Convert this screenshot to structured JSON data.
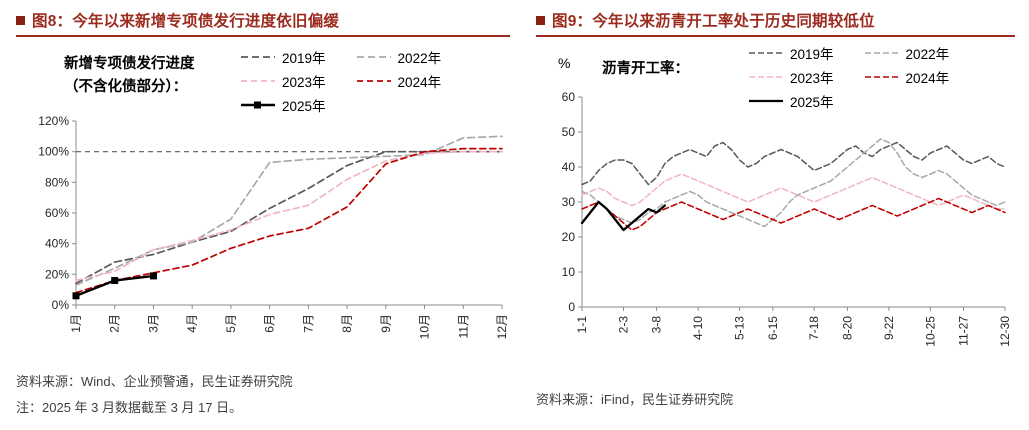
{
  "left_panel": {
    "title": "图8：今年以来新增专项债发行进度依旧偏缓",
    "caption_line1": "新增专项债发行进度",
    "caption_line2": "（不含化债部分）：",
    "source": "资料来源：Wind、企业预警通，民生证券研究院",
    "note": "注：2025 年 3 月数据截至 3 月 17 日。"
  },
  "right_panel": {
    "title": "图9：今年以来沥青开工率处于历史同期较低位",
    "unit_label": "%",
    "caption": "沥青开工率：",
    "source": "资料来源：iFind，民生证券研究院"
  },
  "colors": {
    "title": "#9C2B1F",
    "underline": "#9C2B1F",
    "bullet": "#8A1F14",
    "source_text": "#404040",
    "axis": "#8C8C8C"
  },
  "chart_data": [
    {
      "type": "line",
      "title": "新增专项债发行进度（不含化债部分）",
      "x_count": 12,
      "x_tick_indices": [
        0,
        1,
        2,
        3,
        4,
        5,
        6,
        7,
        8,
        9,
        10,
        11
      ],
      "x_tick_labels": [
        "1月",
        "2月",
        "3月",
        "4月",
        "5月",
        "6月",
        "7月",
        "8月",
        "9月",
        "10月",
        "11月",
        "12月"
      ],
      "y_min": 0,
      "y_max": 120,
      "y_ticks": [
        0,
        20,
        40,
        60,
        80,
        100,
        120
      ],
      "y_tick_labels": [
        "0%",
        "20%",
        "40%",
        "60%",
        "80%",
        "100%",
        "120%"
      ],
      "ref_lines": [
        {
          "y": 100,
          "color": "#595959",
          "dash": "5,4"
        }
      ],
      "legend_position": "top-right",
      "series": [
        {
          "name": "2019年",
          "color": "#595959",
          "dash": "7,4",
          "width": 1.7,
          "marker": false,
          "values": [
            14,
            28,
            33,
            41,
            48,
            63,
            76,
            91,
            100,
            100,
            100,
            100
          ]
        },
        {
          "name": "2022年",
          "color": "#A9A9A9",
          "dash": "7,4",
          "width": 1.7,
          "marker": false,
          "values": [
            13,
            24,
            36,
            41,
            56,
            93,
            95,
            96,
            97,
            98,
            109,
            110
          ]
        },
        {
          "name": "2023年",
          "color": "#F2B5C4",
          "dash": "6,4",
          "width": 1.7,
          "marker": false,
          "values": [
            16,
            22,
            36,
            42,
            49,
            59,
            65,
            82,
            94,
            99,
            100,
            100
          ]
        },
        {
          "name": "2024年",
          "color": "#C00000",
          "dash": "6,4",
          "width": 1.7,
          "marker": false,
          "values": [
            8,
            16,
            21,
            26,
            37,
            45,
            50,
            64,
            92,
            100,
            102,
            102
          ]
        },
        {
          "name": "2025年",
          "color": "#000000",
          "dash": null,
          "width": 2.4,
          "marker": true,
          "values": [
            6,
            16,
            19
          ]
        }
      ]
    },
    {
      "type": "line",
      "title": "沥青开工率",
      "x_count": 52,
      "x_tick_indices": [
        0,
        5,
        9,
        14,
        19,
        23,
        28,
        32,
        37,
        42,
        46,
        51
      ],
      "x_tick_labels": [
        "1-1",
        "2-3",
        "3-8",
        "4-10",
        "5-13",
        "6-15",
        "7-18",
        "8-20",
        "9-22",
        "10-25",
        "11-27",
        "12-30"
      ],
      "y_min": 0,
      "y_max": 60,
      "y_ticks": [
        0,
        10,
        20,
        30,
        40,
        50,
        60
      ],
      "y_tick_labels": [
        "0",
        "10",
        "20",
        "30",
        "40",
        "50",
        "60"
      ],
      "ref_lines": [],
      "legend_position": "top-right",
      "series": [
        {
          "name": "2019年",
          "color": "#595959",
          "dash": "6,3",
          "width": 1.5,
          "marker": false,
          "values": [
            35,
            36,
            39,
            41,
            42,
            42,
            41,
            38,
            35,
            37,
            41,
            43,
            44,
            45,
            44,
            43,
            46,
            47,
            45,
            42,
            40,
            41,
            43,
            44,
            45,
            44,
            43,
            41,
            39,
            40,
            41,
            43,
            45,
            46,
            44,
            43,
            45,
            46,
            47,
            45,
            43,
            42,
            44,
            45,
            46,
            44,
            42,
            41,
            42,
            43,
            41,
            40
          ]
        },
        {
          "name": "2022年",
          "color": "#A9A9A9",
          "dash": "6,3",
          "width": 1.5,
          "marker": false,
          "values": [
            33,
            32,
            30,
            28,
            26,
            25,
            24,
            25,
            27,
            28,
            30,
            31,
            32,
            33,
            32,
            30,
            29,
            28,
            27,
            26,
            25,
            24,
            23,
            25,
            27,
            30,
            32,
            33,
            34,
            35,
            36,
            38,
            40,
            42,
            44,
            46,
            48,
            47,
            44,
            40,
            38,
            37,
            38,
            39,
            38,
            36,
            34,
            32,
            31,
            30,
            29,
            30
          ]
        },
        {
          "name": "2023年",
          "color": "#F2B5C4",
          "dash": "6,3",
          "width": 1.5,
          "marker": false,
          "values": [
            32,
            33,
            34,
            33,
            31,
            30,
            29,
            30,
            32,
            34,
            36,
            37,
            38,
            37,
            36,
            35,
            34,
            33,
            32,
            31,
            30,
            31,
            32,
            33,
            34,
            33,
            32,
            31,
            30,
            31,
            32,
            33,
            34,
            35,
            36,
            37,
            36,
            35,
            34,
            33,
            32,
            31,
            30,
            29,
            30,
            31,
            32,
            31,
            30,
            29,
            28,
            28
          ]
        },
        {
          "name": "2024年",
          "color": "#C00000",
          "dash": "6,3",
          "width": 1.5,
          "marker": false,
          "values": [
            28,
            29,
            30,
            28,
            26,
            24,
            22,
            23,
            25,
            27,
            28,
            29,
            30,
            29,
            28,
            27,
            26,
            25,
            26,
            27,
            28,
            27,
            26,
            25,
            24,
            25,
            26,
            27,
            28,
            27,
            26,
            25,
            26,
            27,
            28,
            29,
            28,
            27,
            26,
            27,
            28,
            29,
            30,
            31,
            30,
            29,
            28,
            27,
            28,
            29,
            28,
            27
          ]
        },
        {
          "name": "2025年",
          "color": "#000000",
          "dash": null,
          "width": 2.3,
          "marker": false,
          "values": [
            24,
            27,
            30,
            28,
            25,
            22,
            24,
            26,
            28,
            27,
            29
          ]
        }
      ]
    }
  ]
}
